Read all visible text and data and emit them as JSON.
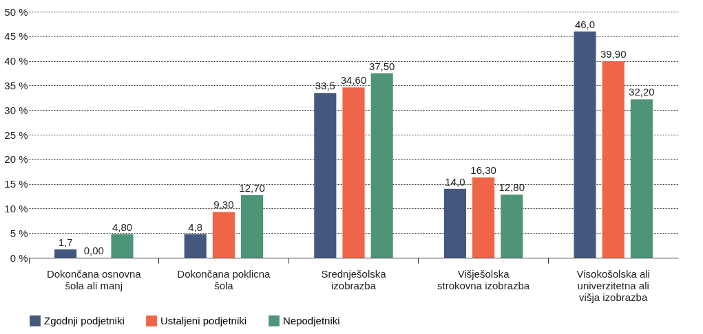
{
  "chart_data": {
    "type": "bar",
    "categories": [
      "Dokončana osnovna\nšola ali manj",
      "Dokončana poklicna\nšola",
      "Srednješolska\nizobrazba",
      "Višješolska\nstrokovna izobrazba",
      "Visokošolska ali\nuniverzitetna ali\nvišja izobrazba"
    ],
    "series": [
      {
        "name": "Zgodnji podjetniki",
        "color": "#44587f",
        "values": [
          1.7,
          4.8,
          33.5,
          14.0,
          46.0
        ],
        "value_labels": [
          "1,7",
          "4,8",
          "33,5",
          "14,0",
          "46,0"
        ]
      },
      {
        "name": "Ustaljeni podjetniki",
        "color": "#ef6548",
        "values": [
          0.0,
          9.3,
          34.6,
          16.3,
          39.9
        ],
        "value_labels": [
          "0,00",
          "9,30",
          "34,60",
          "16,30",
          "39,90"
        ]
      },
      {
        "name": "Nepodjetniki",
        "color": "#4e9477",
        "values": [
          4.8,
          12.7,
          37.5,
          12.8,
          32.2
        ],
        "value_labels": [
          "4,80",
          "12,70",
          "37,50",
          "12,80",
          "32,20"
        ]
      }
    ],
    "ylim": [
      0,
      50
    ],
    "yticks": [
      {
        "value": 0,
        "label": "0 %"
      },
      {
        "value": 5,
        "label": "5 %"
      },
      {
        "value": 10,
        "label": "10 %"
      },
      {
        "value": 15,
        "label": "15 %"
      },
      {
        "value": 20,
        "label": "20 %"
      },
      {
        "value": 25,
        "label": "25 %"
      },
      {
        "value": 30,
        "label": "30 %"
      },
      {
        "value": 35,
        "label": "35 %"
      },
      {
        "value": 40,
        "label": "40 %"
      },
      {
        "value": 45,
        "label": "45 %"
      },
      {
        "value": 50,
        "label": "50 %"
      }
    ],
    "grid": "y",
    "legend": "bottom"
  }
}
